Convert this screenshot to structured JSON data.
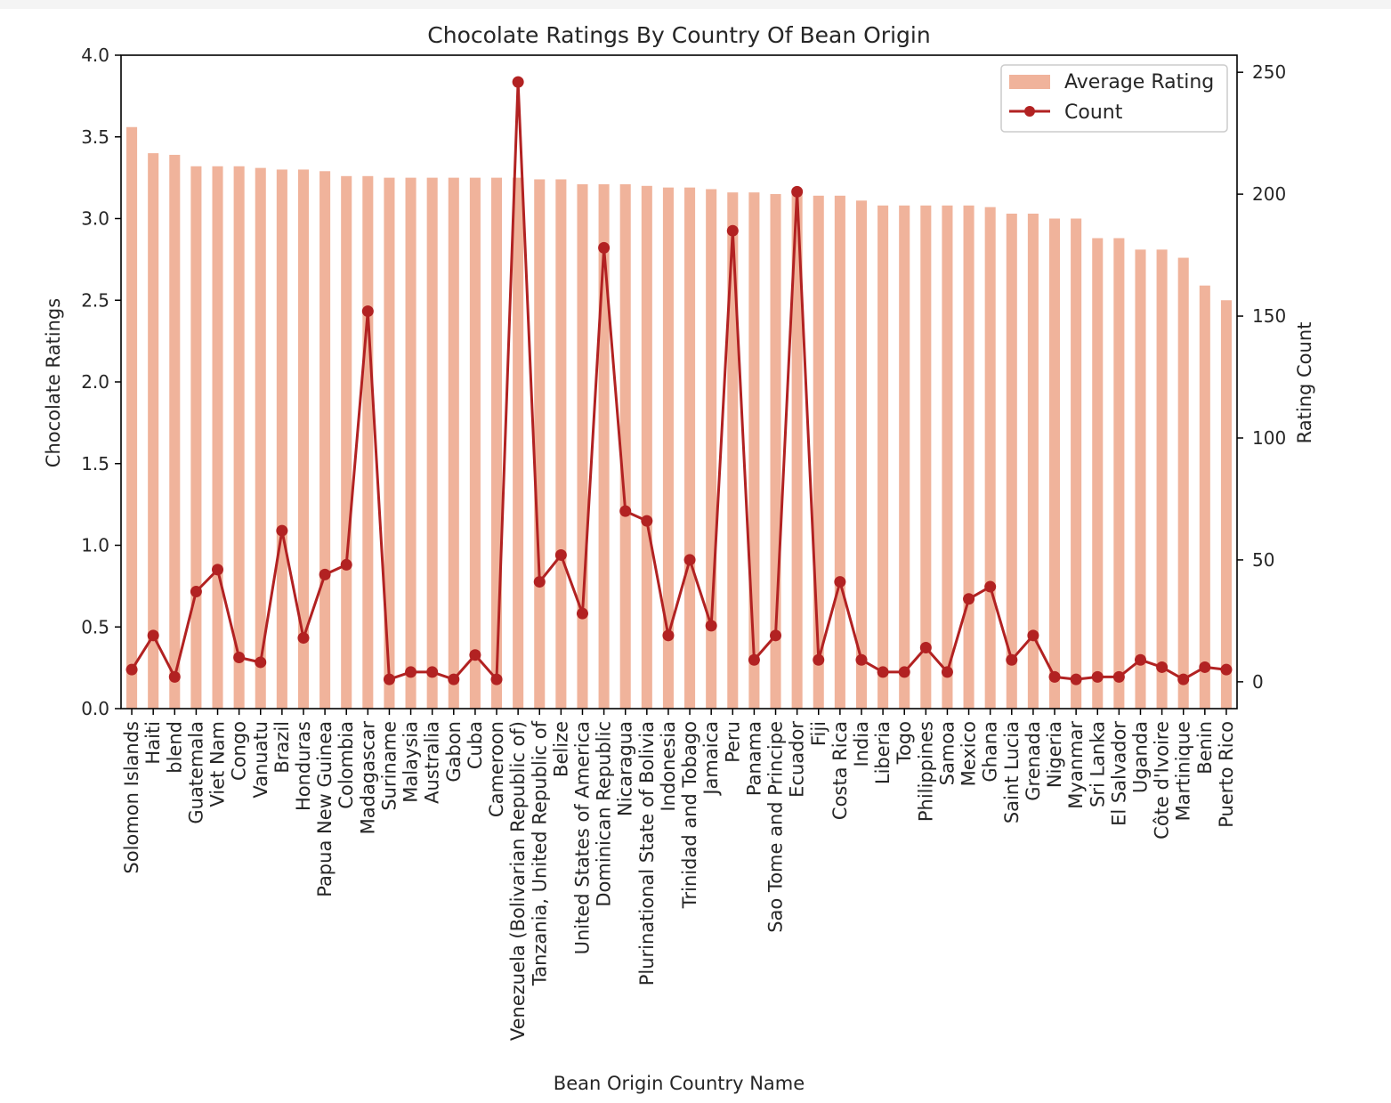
{
  "chart_data": {
    "type": "bar",
    "title": "Chocolate Ratings By Country Of Bean Origin",
    "xlabel": "Bean Origin Country Name",
    "ylabel": "Chocolate Ratings",
    "y2label": "Rating Count",
    "ylim": [
      0,
      4.0
    ],
    "y2lim": [
      -11,
      257
    ],
    "yticks": [
      "0.0",
      "0.5",
      "1.0",
      "1.5",
      "2.0",
      "2.5",
      "3.0",
      "3.5",
      "4.0"
    ],
    "y2ticks": [
      "0",
      "50",
      "100",
      "150",
      "200",
      "250"
    ],
    "legend_position": "top-right",
    "grid": false,
    "colors": {
      "bar": "#f0b39b",
      "line": "#b22222"
    },
    "categories": [
      "Solomon Islands",
      "Haiti",
      "blend",
      "Guatemala",
      "Viet Nam",
      "Congo",
      "Vanuatu",
      "Brazil",
      "Honduras",
      "Papua New Guinea",
      "Colombia",
      "Madagascar",
      "Suriname",
      "Malaysia",
      "Australia",
      "Gabon",
      "Cuba",
      "Cameroon",
      "Venezuela (Bolivarian Republic of)",
      "Tanzania, United Republic of",
      "Belize",
      "United States of America",
      "Dominican Republic",
      "Nicaragua",
      "Plurinational State of Bolivia",
      "Indonesia",
      "Trinidad and Tobago",
      "Jamaica",
      "Peru",
      "Panama",
      "Sao Tome and Principe",
      "Ecuador",
      "Fiji",
      "Costa Rica",
      "India",
      "Liberia",
      "Togo",
      "Philippines",
      "Samoa",
      "Mexico",
      "Ghana",
      "Saint Lucia",
      "Grenada",
      "Nigeria",
      "Myanmar",
      "Sri Lanka",
      "El Salvador",
      "Uganda",
      "Côte d'Ivoire",
      "Martinique",
      "Benin",
      "Puerto Rico"
    ],
    "series": [
      {
        "name": "Average Rating",
        "type": "bar",
        "axis": "left",
        "values": [
          3.56,
          3.4,
          3.39,
          3.32,
          3.32,
          3.32,
          3.31,
          3.3,
          3.3,
          3.29,
          3.26,
          3.26,
          3.25,
          3.25,
          3.25,
          3.25,
          3.25,
          3.25,
          3.25,
          3.24,
          3.24,
          3.21,
          3.21,
          3.21,
          3.2,
          3.19,
          3.19,
          3.18,
          3.16,
          3.16,
          3.15,
          3.15,
          3.14,
          3.14,
          3.11,
          3.08,
          3.08,
          3.08,
          3.08,
          3.08,
          3.07,
          3.03,
          3.03,
          3.0,
          3.0,
          2.88,
          2.88,
          2.81,
          2.81,
          2.76,
          2.59,
          2.5
        ]
      },
      {
        "name": "Count",
        "type": "line",
        "axis": "right",
        "values": [
          5,
          19,
          2,
          37,
          46,
          10,
          8,
          62,
          18,
          44,
          48,
          152,
          1,
          4,
          4,
          1,
          11,
          1,
          246,
          41,
          52,
          28,
          178,
          70,
          66,
          19,
          50,
          23,
          185,
          9,
          19,
          201,
          9,
          41,
          9,
          4,
          4,
          14,
          4,
          34,
          39,
          9,
          19,
          2,
          1,
          2,
          2,
          9,
          6,
          1,
          6,
          5
        ]
      }
    ]
  }
}
